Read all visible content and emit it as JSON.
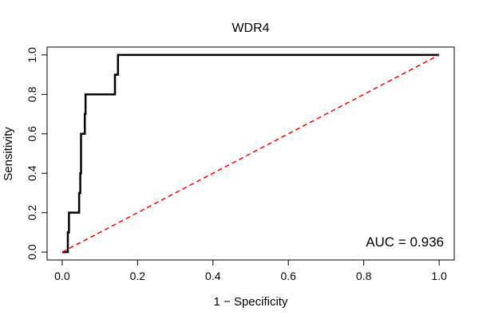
{
  "chart_data": {
    "type": "line",
    "title": "WDR4",
    "xlabel": "1 − Specificity",
    "ylabel": "Sensitivity",
    "xlim": [
      -0.04,
      1.04
    ],
    "ylim": [
      -0.04,
      1.04
    ],
    "xticks": [
      "0.0",
      "0.2",
      "0.4",
      "0.6",
      "0.8",
      "1.0"
    ],
    "yticks": [
      "0.0",
      "0.2",
      "0.4",
      "0.6",
      "0.8",
      "1.0"
    ],
    "grid": false,
    "series": [
      {
        "name": "ROC curve",
        "color": "#000000",
        "x": [
          0.0,
          0.015,
          0.015,
          0.018,
          0.018,
          0.022,
          0.022,
          0.045,
          0.045,
          0.048,
          0.048,
          0.05,
          0.05,
          0.052,
          0.052,
          0.06,
          0.06,
          0.062,
          0.062,
          0.14,
          0.14,
          0.148,
          0.148,
          1.0
        ],
        "y": [
          0.0,
          0.0,
          0.1,
          0.1,
          0.2,
          0.2,
          0.2,
          0.2,
          0.3,
          0.3,
          0.4,
          0.4,
          0.6,
          0.6,
          0.6,
          0.6,
          0.7,
          0.7,
          0.8,
          0.8,
          0.9,
          0.9,
          1.0,
          1.0
        ]
      },
      {
        "name": "chance line",
        "color": "#ff0000",
        "dashed": true,
        "x": [
          0.0,
          1.0
        ],
        "y": [
          0.0,
          1.0
        ]
      }
    ],
    "annotation": "AUC = 0.936"
  }
}
